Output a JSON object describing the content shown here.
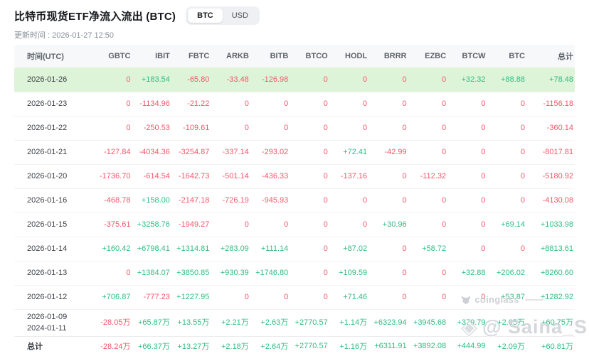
{
  "header": {
    "title": "比特币现货ETF净流入流出 (BTC)",
    "updated": "更新时间 : 2026-01-27 12:50",
    "toggle": {
      "options": [
        "BTC",
        "USD"
      ],
      "selected": "BTC"
    }
  },
  "colors": {
    "positive": "#2ebd85",
    "negative": "#f4566a",
    "highlight_row_bg": "#def4d8"
  },
  "table": {
    "columns": [
      "时间(UTC)",
      "GBTC",
      "IBIT",
      "FBTC",
      "ARKB",
      "BITB",
      "BTCO",
      "HODL",
      "BRRR",
      "EZBC",
      "BTCW",
      "BTC",
      "总计"
    ],
    "rows": [
      {
        "dates": [
          "2026-01-26"
        ],
        "highlight": true,
        "values": [
          "0",
          "+183.54",
          "-65.80",
          "-33.48",
          "-126.98",
          "0",
          "0",
          "0",
          "0",
          "+32.32",
          "+88.88",
          "+78.48"
        ]
      },
      {
        "dates": [
          "2026-01-23"
        ],
        "values": [
          "0",
          "-1134.96",
          "-21.22",
          "0",
          "0",
          "0",
          "0",
          "0",
          "0",
          "0",
          "0",
          "-1156.18"
        ]
      },
      {
        "dates": [
          "2026-01-22"
        ],
        "values": [
          "0",
          "-250.53",
          "-109.61",
          "0",
          "0",
          "0",
          "0",
          "0",
          "0",
          "0",
          "0",
          "-360.14"
        ]
      },
      {
        "dates": [
          "2026-01-21"
        ],
        "values": [
          "-127.84",
          "-4034.36",
          "-3254.87",
          "-337.14",
          "-293.02",
          "0",
          "+72.41",
          "-42.99",
          "0",
          "0",
          "0",
          "-8017.81"
        ]
      },
      {
        "dates": [
          "2026-01-20"
        ],
        "values": [
          "-1736.70",
          "-614.54",
          "-1642.73",
          "-501.14",
          "-436.33",
          "0",
          "-137.16",
          "0",
          "-112.32",
          "0",
          "0",
          "-5180.92"
        ]
      },
      {
        "dates": [
          "2026-01-16"
        ],
        "values": [
          "-468.78",
          "+158.00",
          "-2147.18",
          "-726.19",
          "-945.93",
          "0",
          "0",
          "0",
          "0",
          "0",
          "0",
          "-4130.08"
        ]
      },
      {
        "dates": [
          "2026-01-15"
        ],
        "values": [
          "-375.61",
          "+3258.76",
          "-1949.27",
          "0",
          "0",
          "0",
          "0",
          "+30.96",
          "0",
          "0",
          "+69.14",
          "+1033.98"
        ]
      },
      {
        "dates": [
          "2026-01-14"
        ],
        "values": [
          "+160.42",
          "+6798.41",
          "+1314.81",
          "+283.09",
          "+111.14",
          "0",
          "+87.02",
          "0",
          "+58.72",
          "0",
          "0",
          "+8813.61"
        ]
      },
      {
        "dates": [
          "2026-01-13"
        ],
        "values": [
          "0",
          "+1384.07",
          "+3850.85",
          "+930.39",
          "+1746.80",
          "0",
          "+109.59",
          "0",
          "0",
          "+32.88",
          "+206.02",
          "+8260.60"
        ]
      },
      {
        "dates": [
          "2026-01-12"
        ],
        "values": [
          "+706.87",
          "-777.23",
          "+1227.95",
          "0",
          "0",
          "0",
          "+71.46",
          "0",
          "0",
          "0",
          "+53.87",
          "+1282.92"
        ]
      },
      {
        "dates": [
          "2026-01-09",
          "2024-01-11"
        ],
        "values": [
          "-28.05万",
          "+65.87万",
          "+13.55万",
          "+2.21万",
          "+2.63万",
          "+2770.57",
          "+1.14万",
          "+6323.94",
          "+3945.68",
          "+379.79",
          "+2.05万",
          "+60.75万"
        ]
      }
    ],
    "total": {
      "label": "总计",
      "values": [
        "-28.24万",
        "+66.37万",
        "+13.27万",
        "+2.18万",
        "+2.64万",
        "+2770.57",
        "+1.16万",
        "+6311.91",
        "+3892.08",
        "+444.99",
        "+2.09万",
        "+60.81万"
      ]
    }
  },
  "watermarks": {
    "coinglass": "coinglass",
    "credit": "@ Saina_S"
  }
}
